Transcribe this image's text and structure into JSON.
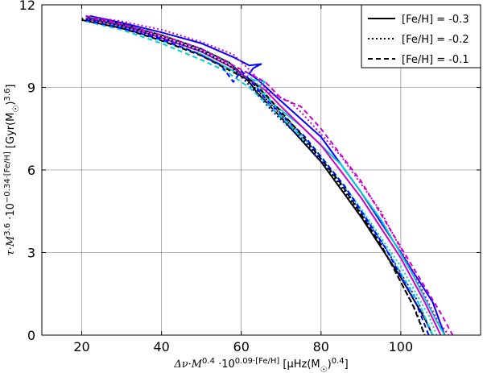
{
  "chart_data": {
    "type": "line",
    "xlabel": "Δν·M^0.4 ·10^(0.09·[Fe/H]) [μHz(M☉)^0.4]",
    "ylabel": "τ·M^3.6 ·10^(−0.34·[Fe/H]) [Gyr(M☉)^3.6]",
    "xlim": [
      10,
      120
    ],
    "ylim": [
      0,
      12
    ],
    "x_ticks": [
      "20",
      "40",
      "60",
      "80",
      "100"
    ],
    "y_ticks": [
      "0",
      "3",
      "6",
      "9",
      "12"
    ],
    "grid": true,
    "legend": {
      "position": "top-right",
      "entries": [
        {
          "label": "[Fe/H] = -0.3",
          "dash": "solid"
        },
        {
          "label": "[Fe/H] = -0.2",
          "dash": "dotted"
        },
        {
          "label": "[Fe/H] = -0.1",
          "dash": "dashed"
        }
      ]
    },
    "series": [
      {
        "color": "#0000ff",
        "dash": "solid",
        "points": [
          [
            22,
            11.6
          ],
          [
            30,
            11.35
          ],
          [
            40,
            11.0
          ],
          [
            50,
            10.6
          ],
          [
            58,
            10.1
          ],
          [
            62,
            9.8
          ],
          [
            65,
            9.85
          ],
          [
            63,
            9.7
          ],
          [
            62,
            9.5
          ],
          [
            64,
            9.3
          ],
          [
            70,
            8.5
          ],
          [
            80,
            7.2
          ],
          [
            90,
            5.2
          ],
          [
            100,
            3.0
          ],
          [
            108,
            1.2
          ],
          [
            111,
            0
          ]
        ]
      },
      {
        "color": "#000000",
        "dash": "solid",
        "points": [
          [
            21,
            11.55
          ],
          [
            30,
            11.3
          ],
          [
            40,
            10.9
          ],
          [
            50,
            10.4
          ],
          [
            57,
            9.9
          ],
          [
            60,
            9.5
          ],
          [
            62,
            9.2
          ],
          [
            64,
            8.8
          ],
          [
            70,
            7.9
          ],
          [
            80,
            6.3
          ],
          [
            90,
            4.3
          ],
          [
            100,
            2.1
          ],
          [
            106,
            0.6
          ],
          [
            108,
            0
          ]
        ]
      },
      {
        "color": "#00cccc",
        "dash": "solid",
        "points": [
          [
            22,
            11.5
          ],
          [
            30,
            11.2
          ],
          [
            40,
            10.7
          ],
          [
            50,
            10.2
          ],
          [
            58,
            9.6
          ],
          [
            62,
            9.3
          ],
          [
            66,
            9.2
          ],
          [
            64,
            9.0
          ],
          [
            68,
            8.4
          ],
          [
            75,
            7.6
          ],
          [
            85,
            6.2
          ],
          [
            95,
            4.2
          ],
          [
            103,
            2.2
          ],
          [
            109,
            0.5
          ],
          [
            111,
            0
          ]
        ]
      },
      {
        "color": "#cc00cc",
        "dash": "solid",
        "points": [
          [
            21,
            11.5
          ],
          [
            30,
            11.25
          ],
          [
            40,
            10.8
          ],
          [
            50,
            10.3
          ],
          [
            58,
            9.7
          ],
          [
            63,
            9.2
          ],
          [
            66,
            8.9
          ],
          [
            70,
            8.3
          ],
          [
            80,
            6.9
          ],
          [
            90,
            5.0
          ],
          [
            100,
            2.8
          ],
          [
            106,
            1.2
          ],
          [
            110,
            0
          ]
        ]
      },
      {
        "color": "#cc00cc",
        "dash": "dotted",
        "points": [
          [
            21,
            11.6
          ],
          [
            30,
            11.4
          ],
          [
            40,
            11.1
          ],
          [
            50,
            10.65
          ],
          [
            58,
            10.2
          ],
          [
            63,
            9.5
          ],
          [
            67,
            8.8
          ],
          [
            72,
            8.5
          ],
          [
            75,
            8.1
          ],
          [
            85,
            6.5
          ],
          [
            95,
            4.5
          ],
          [
            103,
            2.3
          ],
          [
            109,
            0.6
          ],
          [
            112,
            0
          ]
        ]
      },
      {
        "color": "#00cccc",
        "dash": "dotted",
        "points": [
          [
            21,
            11.55
          ],
          [
            30,
            11.3
          ],
          [
            40,
            10.9
          ],
          [
            50,
            10.4
          ],
          [
            58,
            9.8
          ],
          [
            62,
            9.4
          ],
          [
            65,
            9.0
          ],
          [
            70,
            8.0
          ],
          [
            80,
            6.5
          ],
          [
            90,
            4.6
          ],
          [
            100,
            2.5
          ],
          [
            107,
            0.7
          ],
          [
            109,
            0
          ]
        ]
      },
      {
        "color": "#0000ff",
        "dash": "dotted",
        "points": [
          [
            22,
            11.5
          ],
          [
            30,
            11.2
          ],
          [
            40,
            10.8
          ],
          [
            50,
            10.3
          ],
          [
            57,
            9.8
          ],
          [
            60,
            9.4
          ],
          [
            63,
            8.9
          ],
          [
            68,
            8.1
          ],
          [
            76,
            7.0
          ],
          [
            86,
            5.3
          ],
          [
            96,
            3.2
          ],
          [
            104,
            1.3
          ],
          [
            108,
            0
          ]
        ]
      },
      {
        "color": "#000000",
        "dash": "dotted",
        "points": [
          [
            20,
            11.5
          ],
          [
            30,
            11.25
          ],
          [
            40,
            10.85
          ],
          [
            50,
            10.35
          ],
          [
            57,
            9.8
          ],
          [
            61,
            9.3
          ],
          [
            64,
            8.9
          ],
          [
            70,
            8.0
          ],
          [
            80,
            6.4
          ],
          [
            90,
            4.4
          ],
          [
            98,
            2.5
          ],
          [
            104,
            0.8
          ],
          [
            106,
            0
          ]
        ]
      },
      {
        "color": "#cc00cc",
        "dash": "dashed",
        "points": [
          [
            21,
            11.6
          ],
          [
            30,
            11.3
          ],
          [
            40,
            10.9
          ],
          [
            50,
            10.4
          ],
          [
            58,
            9.8
          ],
          [
            62,
            9.5
          ],
          [
            66,
            9.2
          ],
          [
            70,
            8.6
          ],
          [
            75,
            8.3
          ],
          [
            80,
            7.5
          ],
          [
            90,
            5.6
          ],
          [
            100,
            3.2
          ],
          [
            110,
            0.8
          ],
          [
            113,
            0
          ]
        ]
      },
      {
        "color": "#00cccc",
        "dash": "dashed",
        "points": [
          [
            21,
            11.4
          ],
          [
            30,
            11.1
          ],
          [
            40,
            10.6
          ],
          [
            50,
            10.0
          ],
          [
            56,
            9.6
          ],
          [
            58,
            9.4
          ],
          [
            62,
            9.0
          ],
          [
            68,
            8.2
          ],
          [
            78,
            6.8
          ],
          [
            88,
            5.0
          ],
          [
            97,
            3.0
          ],
          [
            105,
            1.0
          ],
          [
            108,
            0
          ]
        ]
      },
      {
        "color": "#0000ff",
        "dash": "dashed",
        "points": [
          [
            21,
            11.45
          ],
          [
            30,
            11.15
          ],
          [
            40,
            10.75
          ],
          [
            48,
            10.3
          ],
          [
            55,
            9.8
          ],
          [
            58,
            9.2
          ],
          [
            60,
            9.6
          ],
          [
            62,
            9.3
          ],
          [
            66,
            8.6
          ],
          [
            76,
            7.2
          ],
          [
            86,
            5.4
          ],
          [
            96,
            3.2
          ],
          [
            104,
            1.1
          ],
          [
            107,
            0
          ]
        ]
      },
      {
        "color": "#000000",
        "dash": "dashed",
        "points": [
          [
            20,
            11.45
          ],
          [
            30,
            11.15
          ],
          [
            40,
            10.7
          ],
          [
            50,
            10.15
          ],
          [
            56,
            9.7
          ],
          [
            60,
            9.4
          ],
          [
            63,
            9.2
          ],
          [
            67,
            8.6
          ],
          [
            75,
            7.3
          ],
          [
            85,
            5.5
          ],
          [
            95,
            3.3
          ],
          [
            103,
            1.1
          ],
          [
            106,
            0
          ]
        ]
      }
    ]
  }
}
